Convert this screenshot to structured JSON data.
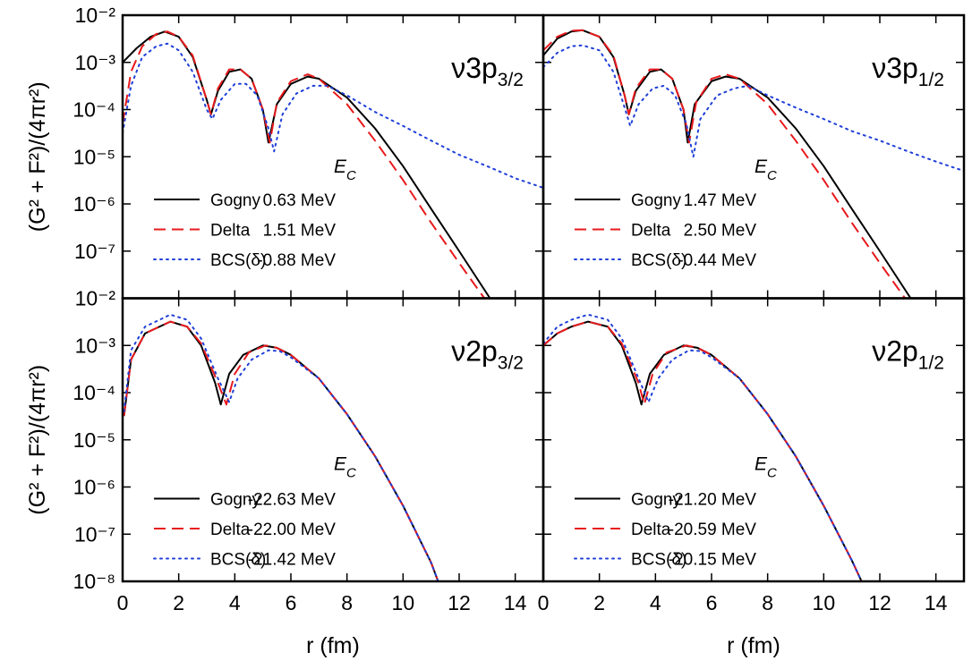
{
  "chart_data": [
    {
      "type": "line",
      "log_y": true,
      "xlim": [
        0,
        15
      ],
      "ylim": [
        1e-08,
        0.01
      ],
      "xticks": [
        0,
        2,
        4,
        6,
        8,
        10,
        12,
        14
      ],
      "xtick_labels": false,
      "yticks": [
        {
          "value": 0.01,
          "label": "10⁻²"
        },
        {
          "value": 0.001,
          "label": "10⁻³"
        },
        {
          "value": 0.0001,
          "label": "10⁻⁴"
        },
        {
          "value": 1e-05,
          "label": "10⁻⁵"
        },
        {
          "value": 1e-06,
          "label": "10⁻⁶"
        },
        {
          "value": 1e-07,
          "label": "10⁻⁷"
        }
      ],
      "ylabel": "(G² + F²)/(4πr²)",
      "state": "ν3p",
      "state_sub": "3/2",
      "legend_title": "E",
      "legend_title_sub": "C",
      "series": [
        {
          "name": "Gogny",
          "energy": "0.63 MeV",
          "color": "#000000",
          "dash": "solid",
          "x": [
            0,
            0.5,
            1,
            1.5,
            2,
            2.5,
            3,
            3.15,
            3.4,
            3.8,
            4.2,
            4.6,
            5,
            5.2,
            5.5,
            6,
            6.6,
            7,
            8,
            9,
            10,
            11,
            12,
            13.1
          ],
          "values": [
            0.001,
            0.002,
            0.0035,
            0.0045,
            0.0035,
            0.0013,
            0.00016,
            7.9e-05,
            0.00025,
            0.00063,
            0.00071,
            0.00045,
            0.0001,
            2e-05,
            0.00013,
            0.00035,
            0.0005,
            0.00045,
            0.00018,
            4e-05,
            6.3e-06,
            7.9e-07,
            1e-07,
            1e-08
          ]
        },
        {
          "name": "Delta",
          "energy": "1.51 MeV",
          "color": "#e8191c",
          "dash": "dashed",
          "x": [
            0,
            0.3,
            0.7,
            1.2,
            1.6,
            2,
            2.5,
            3,
            3.15,
            3.4,
            3.8,
            4.2,
            4.6,
            5,
            5.25,
            5.5,
            6,
            6.6,
            7,
            8,
            9,
            10,
            11,
            12,
            12.9
          ],
          "values": [
            5e-05,
            0.00063,
            0.0022,
            0.004,
            0.0045,
            0.0035,
            0.0014,
            0.00016,
            7.9e-05,
            0.00028,
            0.00071,
            0.00071,
            0.00045,
            0.0001,
            2e-05,
            0.00014,
            0.0004,
            0.00056,
            0.00045,
            0.00013,
            2.2e-05,
            3.2e-06,
            4e-07,
            5.6e-08,
            1e-08
          ]
        },
        {
          "name": "BCS(δ)",
          "energy": "-0.88 MeV",
          "color": "#1f3fd8",
          "dash": "dotted",
          "x": [
            0,
            0.3,
            0.7,
            1.2,
            1.6,
            2,
            2.5,
            3,
            3.2,
            3.5,
            4,
            4.4,
            4.8,
            5.2,
            5.4,
            5.7,
            6.2,
            6.8,
            7.3,
            8,
            9,
            10,
            11,
            12,
            13,
            14,
            15
          ],
          "values": [
            3.2e-05,
            0.00032,
            0.0013,
            0.0022,
            0.0025,
            0.0018,
            0.00063,
            0.0001,
            6.3e-05,
            0.00016,
            0.00035,
            0.00035,
            0.0002,
            4e-05,
            1.3e-05,
            7.9e-05,
            0.00022,
            0.00032,
            0.00032,
            0.0002,
            8.9e-05,
            4.5e-05,
            2.2e-05,
            1.1e-05,
            6.3e-06,
            3.5e-06,
            2.2e-06
          ]
        }
      ]
    },
    {
      "type": "line",
      "log_y": true,
      "xlim": [
        0,
        15
      ],
      "ylim": [
        1e-08,
        0.01
      ],
      "xticks": [
        0,
        2,
        4,
        6,
        8,
        10,
        12,
        14
      ],
      "xtick_labels": false,
      "yticks": [
        0.01,
        0.001,
        0.0001,
        1e-05,
        1e-06,
        1e-07
      ],
      "ytick_labels": false,
      "state": "ν3p",
      "state_sub": "1/2",
      "legend_title": "E",
      "legend_title_sub": "C",
      "series": [
        {
          "name": "Gogny",
          "energy": "1.47 MeV",
          "color": "#000000",
          "dash": "solid",
          "x": [
            0,
            0.5,
            1,
            1.4,
            2,
            2.5,
            2.9,
            3.05,
            3.3,
            3.8,
            4.2,
            4.6,
            5,
            5.15,
            5.4,
            6,
            6.5,
            7,
            8,
            9,
            10,
            11,
            12,
            13.1
          ],
          "values": [
            0.0014,
            0.0032,
            0.0045,
            0.0048,
            0.0035,
            0.0013,
            0.0002,
            7.9e-05,
            0.00025,
            0.00063,
            0.00071,
            0.00045,
            0.0001,
            2e-05,
            0.00013,
            0.0004,
            0.0005,
            0.00045,
            0.00018,
            4e-05,
            6.3e-06,
            7.9e-07,
            1e-07,
            1e-08
          ]
        },
        {
          "name": "Delta",
          "energy": "2.50 MeV",
          "color": "#e8191c",
          "dash": "dashed",
          "x": [
            0,
            0.5,
            1,
            1.4,
            2,
            2.5,
            2.9,
            3.05,
            3.3,
            3.8,
            4.2,
            4.6,
            5,
            5.2,
            5.45,
            6,
            6.5,
            7,
            8,
            9,
            10,
            11,
            12,
            12.9
          ],
          "values": [
            0.0018,
            0.0035,
            0.0047,
            0.0048,
            0.0035,
            0.0014,
            0.0002,
            7.9e-05,
            0.00028,
            0.00071,
            0.00071,
            0.00045,
            0.0001,
            2e-05,
            0.00014,
            0.00045,
            0.00056,
            0.00045,
            0.00013,
            2.2e-05,
            3.2e-06,
            4e-07,
            5.6e-08,
            1e-08
          ]
        },
        {
          "name": "BCS(δ)",
          "energy": "-0.44 MeV",
          "color": "#1f3fd8",
          "dash": "dotted",
          "x": [
            0,
            0.5,
            1,
            1.4,
            2,
            2.5,
            2.9,
            3.1,
            3.4,
            3.9,
            4.3,
            4.7,
            5.1,
            5.35,
            5.6,
            6.2,
            6.8,
            7.3,
            8,
            9,
            10,
            11,
            12,
            13,
            14,
            15
          ],
          "values": [
            0.00079,
            0.0016,
            0.0022,
            0.0023,
            0.0018,
            0.00063,
            0.00011,
            4.5e-05,
            0.00013,
            0.00028,
            0.00032,
            0.0002,
            5e-05,
            1e-05,
            6.3e-05,
            0.0002,
            0.00028,
            0.00032,
            0.0002,
            0.00011,
            6.3e-05,
            3.5e-05,
            2.2e-05,
            1.3e-05,
            7.9e-06,
            5e-06
          ]
        }
      ]
    },
    {
      "type": "line",
      "log_y": true,
      "xlim": [
        0,
        15
      ],
      "ylim": [
        1e-08,
        0.01
      ],
      "xticks": [
        0,
        2,
        4,
        6,
        8,
        10,
        12,
        14
      ],
      "xlabel": "r (fm)",
      "yticks": [
        {
          "value": 0.01,
          "label": "10⁻²"
        },
        {
          "value": 0.001,
          "label": "10⁻³"
        },
        {
          "value": 0.0001,
          "label": "10⁻⁴"
        },
        {
          "value": 1e-05,
          "label": "10⁻⁵"
        },
        {
          "value": 1e-06,
          "label": "10⁻⁶"
        },
        {
          "value": 1e-07,
          "label": "10⁻⁷"
        },
        {
          "value": 1e-08,
          "label": "10⁻⁸"
        }
      ],
      "ylabel": "(G² + F²)/(4πr²)",
      "state": "ν2p",
      "state_sub": "3/2",
      "legend_title": "E",
      "legend_title_sub": "C",
      "series": [
        {
          "name": "Gogny",
          "energy": "-22.63 MeV",
          "color": "#000000",
          "dash": "solid",
          "x": [
            0.05,
            0.3,
            0.8,
            1.7,
            2.3,
            2.8,
            3.3,
            3.5,
            3.8,
            4.3,
            5,
            5.5,
            6,
            7,
            8,
            9,
            10,
            11,
            11.25
          ],
          "values": [
            3.2e-05,
            0.0005,
            0.0018,
            0.0032,
            0.0025,
            0.001,
            0.00016,
            5.6e-05,
            0.00025,
            0.00063,
            0.001,
            0.00089,
            0.00063,
            0.0002,
            3.5e-05,
            4.5e-06,
            4e-07,
            2.5e-08,
            1e-08
          ]
        },
        {
          "name": "Delta",
          "energy": "-22.00 MeV",
          "color": "#e8191c",
          "dash": "dashed",
          "x": [
            0.05,
            0.3,
            0.8,
            1.7,
            2.3,
            2.8,
            3.4,
            3.7,
            4,
            4.5,
            5.1,
            5.5,
            6,
            7,
            8,
            9,
            10,
            11,
            11.25
          ],
          "values": [
            3.2e-05,
            0.0005,
            0.0018,
            0.0032,
            0.0025,
            0.0011,
            0.00016,
            5.6e-05,
            0.00025,
            0.00071,
            0.001,
            0.00089,
            0.00063,
            0.0002,
            3.5e-05,
            4.5e-06,
            4e-07,
            2.5e-08,
            1e-08
          ]
        },
        {
          "name": "BCS(δ)",
          "energy": "-21.42 MeV",
          "color": "#1f3fd8",
          "dash": "dotted",
          "x": [
            0.05,
            0.3,
            0.8,
            1.7,
            2.3,
            2.8,
            3.4,
            3.8,
            4.1,
            4.6,
            5.2,
            5.6,
            6,
            7,
            8,
            9,
            10,
            11,
            11.25
          ],
          "values": [
            4e-05,
            0.00079,
            0.0025,
            0.0045,
            0.0035,
            0.0014,
            0.0002,
            6.3e-05,
            0.0002,
            0.0005,
            0.00079,
            0.00076,
            0.00056,
            0.0002,
            3.5e-05,
            4.5e-06,
            4e-07,
            2.5e-08,
            1e-08
          ]
        }
      ]
    },
    {
      "type": "line",
      "log_y": true,
      "xlim": [
        0,
        15
      ],
      "ylim": [
        1e-08,
        0.01
      ],
      "xticks": [
        0,
        2,
        4,
        6,
        8,
        10,
        12,
        14
      ],
      "xlabel": "r (fm)",
      "yticks": [
        0.01,
        0.001,
        0.0001,
        1e-05,
        1e-06,
        1e-07,
        1e-08
      ],
      "ytick_labels": false,
      "state": "ν2p",
      "state_sub": "1/2",
      "legend_title": "E",
      "legend_title_sub": "C",
      "series": [
        {
          "name": "Gogny",
          "energy": "-21.20 MeV",
          "color": "#000000",
          "dash": "solid",
          "x": [
            0,
            0.5,
            1,
            1.6,
            2.3,
            2.8,
            3.3,
            3.5,
            3.8,
            4.3,
            5,
            5.5,
            6,
            7,
            8,
            9,
            10,
            11,
            11.35
          ],
          "values": [
            0.001,
            0.0018,
            0.0025,
            0.0032,
            0.0025,
            0.001,
            0.00016,
            5.6e-05,
            0.00025,
            0.00063,
            0.001,
            0.00089,
            0.00063,
            0.0002,
            3.5e-05,
            4.5e-06,
            4e-07,
            2.8e-08,
            1e-08
          ]
        },
        {
          "name": "Delta",
          "energy": "-20.59 MeV",
          "color": "#e8191c",
          "dash": "dashed",
          "x": [
            0,
            0.5,
            1,
            1.6,
            2.3,
            2.8,
            3.4,
            3.6,
            3.9,
            4.4,
            5.1,
            5.5,
            6,
            7,
            8,
            9,
            10,
            11,
            11.35
          ],
          "values": [
            0.001,
            0.0018,
            0.0025,
            0.0032,
            0.0025,
            0.0011,
            0.00016,
            5.6e-05,
            0.00025,
            0.00071,
            0.001,
            0.00089,
            0.00063,
            0.0002,
            3.5e-05,
            4.5e-06,
            4e-07,
            2.8e-08,
            1e-08
          ]
        },
        {
          "name": "BCS(δ)",
          "energy": "-20.15 MeV",
          "color": "#1f3fd8",
          "dash": "dotted",
          "x": [
            0,
            0.5,
            1,
            1.6,
            2.3,
            2.8,
            3.4,
            3.75,
            4.1,
            4.6,
            5.2,
            5.6,
            6,
            7,
            8,
            9,
            10,
            11,
            11.35
          ],
          "values": [
            0.0011,
            0.0025,
            0.0035,
            0.0045,
            0.0035,
            0.0014,
            0.0002,
            6.3e-05,
            0.0002,
            0.0005,
            0.00079,
            0.00076,
            0.00056,
            0.0002,
            3.5e-05,
            4.5e-06,
            4e-07,
            2.8e-08,
            1e-08
          ]
        }
      ]
    }
  ]
}
